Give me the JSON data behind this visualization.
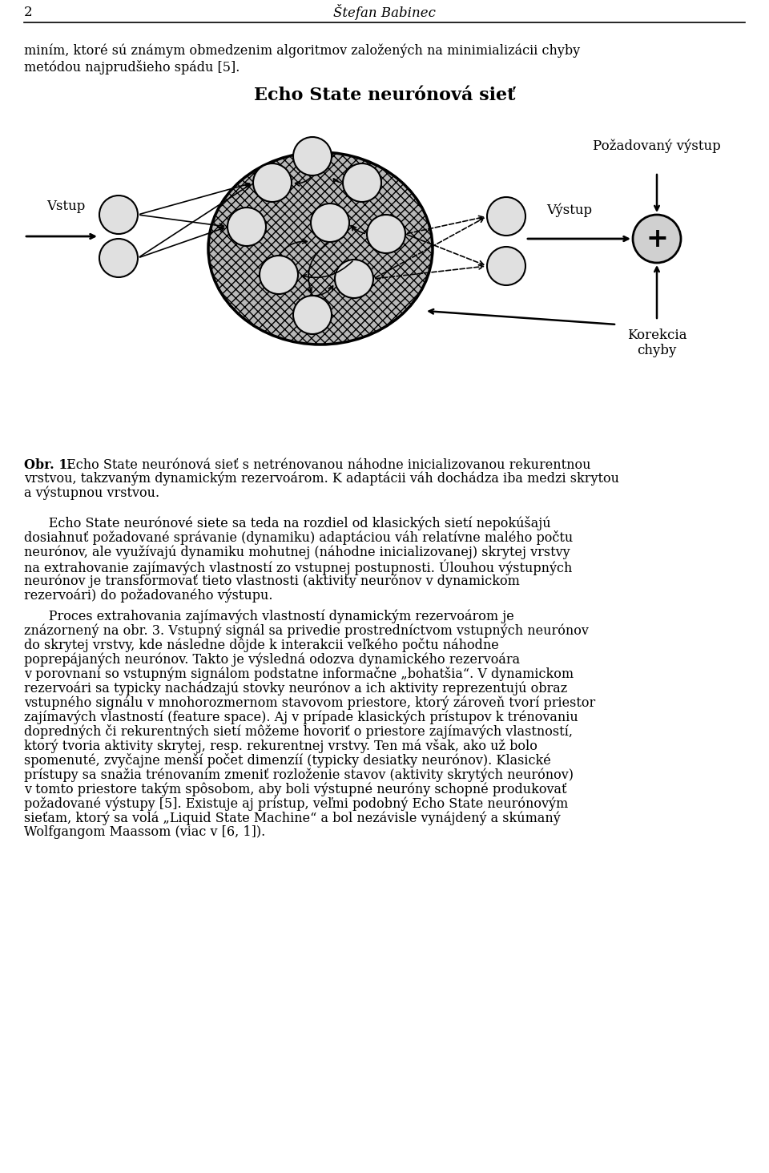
{
  "page_number": "2",
  "header_author": "Štefan Babinec",
  "diagram_title": "Echo State neurónová sieť",
  "label_vstup": "Vstup",
  "label_vystup": "Výstup",
  "label_pozadovany": "Požadovaný výstup",
  "label_korekcia": "Korekcia\nchyby",
  "bg_color": "#ffffff",
  "font_size_body": 11.5,
  "font_size_title": 16
}
